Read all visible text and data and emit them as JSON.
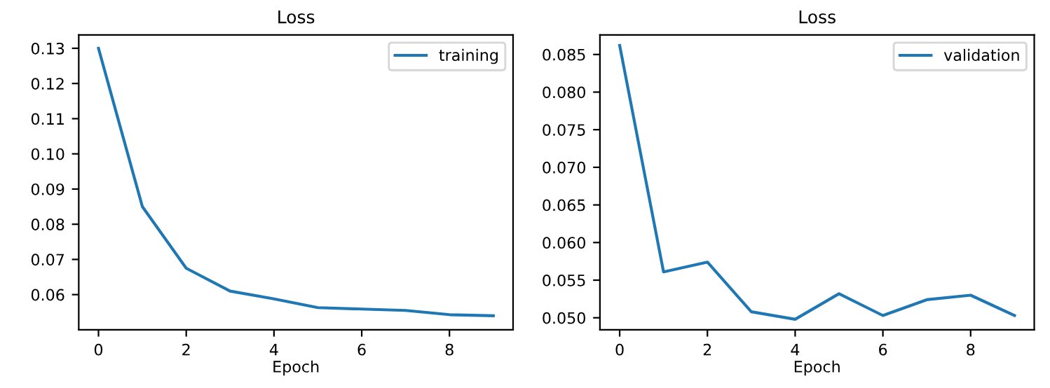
{
  "chart_data": [
    {
      "type": "line",
      "title": "Loss",
      "xlabel": "Epoch",
      "x": [
        0,
        1,
        2,
        3,
        4,
        5,
        6,
        7,
        8,
        9
      ],
      "series": [
        {
          "name": "training",
          "color": "#1f77b4",
          "values": [
            0.13,
            0.085,
            0.0675,
            0.061,
            0.0588,
            0.0563,
            0.0559,
            0.0555,
            0.0543,
            0.054
          ]
        }
      ],
      "xlim": [
        -0.45,
        9.45
      ],
      "xticks": [
        0,
        2,
        4,
        6,
        8
      ],
      "ylim": [
        0.05,
        0.1338
      ],
      "yticks": [
        0.06,
        0.07,
        0.08,
        0.09,
        {
          "value": 0.1,
          "label": "0.10"
        },
        0.11,
        0.12,
        0.13
      ],
      "legend": "top right",
      "grid": false
    },
    {
      "type": "line",
      "title": "Loss",
      "xlabel": "Epoch",
      "x": [
        0,
        1,
        2,
        3,
        4,
        5,
        6,
        7,
        8,
        9
      ],
      "series": [
        {
          "name": "validation",
          "color": "#1f77b4",
          "values": [
            0.0862,
            0.0561,
            0.0574,
            0.0508,
            0.0498,
            0.0532,
            0.0503,
            0.0524,
            0.053,
            0.0503
          ]
        }
      ],
      "xlim": [
        -0.45,
        9.45
      ],
      "xticks": [
        0,
        2,
        4,
        6,
        8
      ],
      "ylim": [
        0.0484,
        0.0876
      ],
      "yticks": [
        {
          "value": 0.05,
          "label": "0.050"
        },
        0.055,
        {
          "value": 0.06,
          "label": "0.060"
        },
        0.065,
        {
          "value": 0.07,
          "label": "0.070"
        },
        0.075,
        {
          "value": 0.08,
          "label": "0.080"
        },
        0.085
      ],
      "legend": "top right",
      "grid": false
    }
  ]
}
